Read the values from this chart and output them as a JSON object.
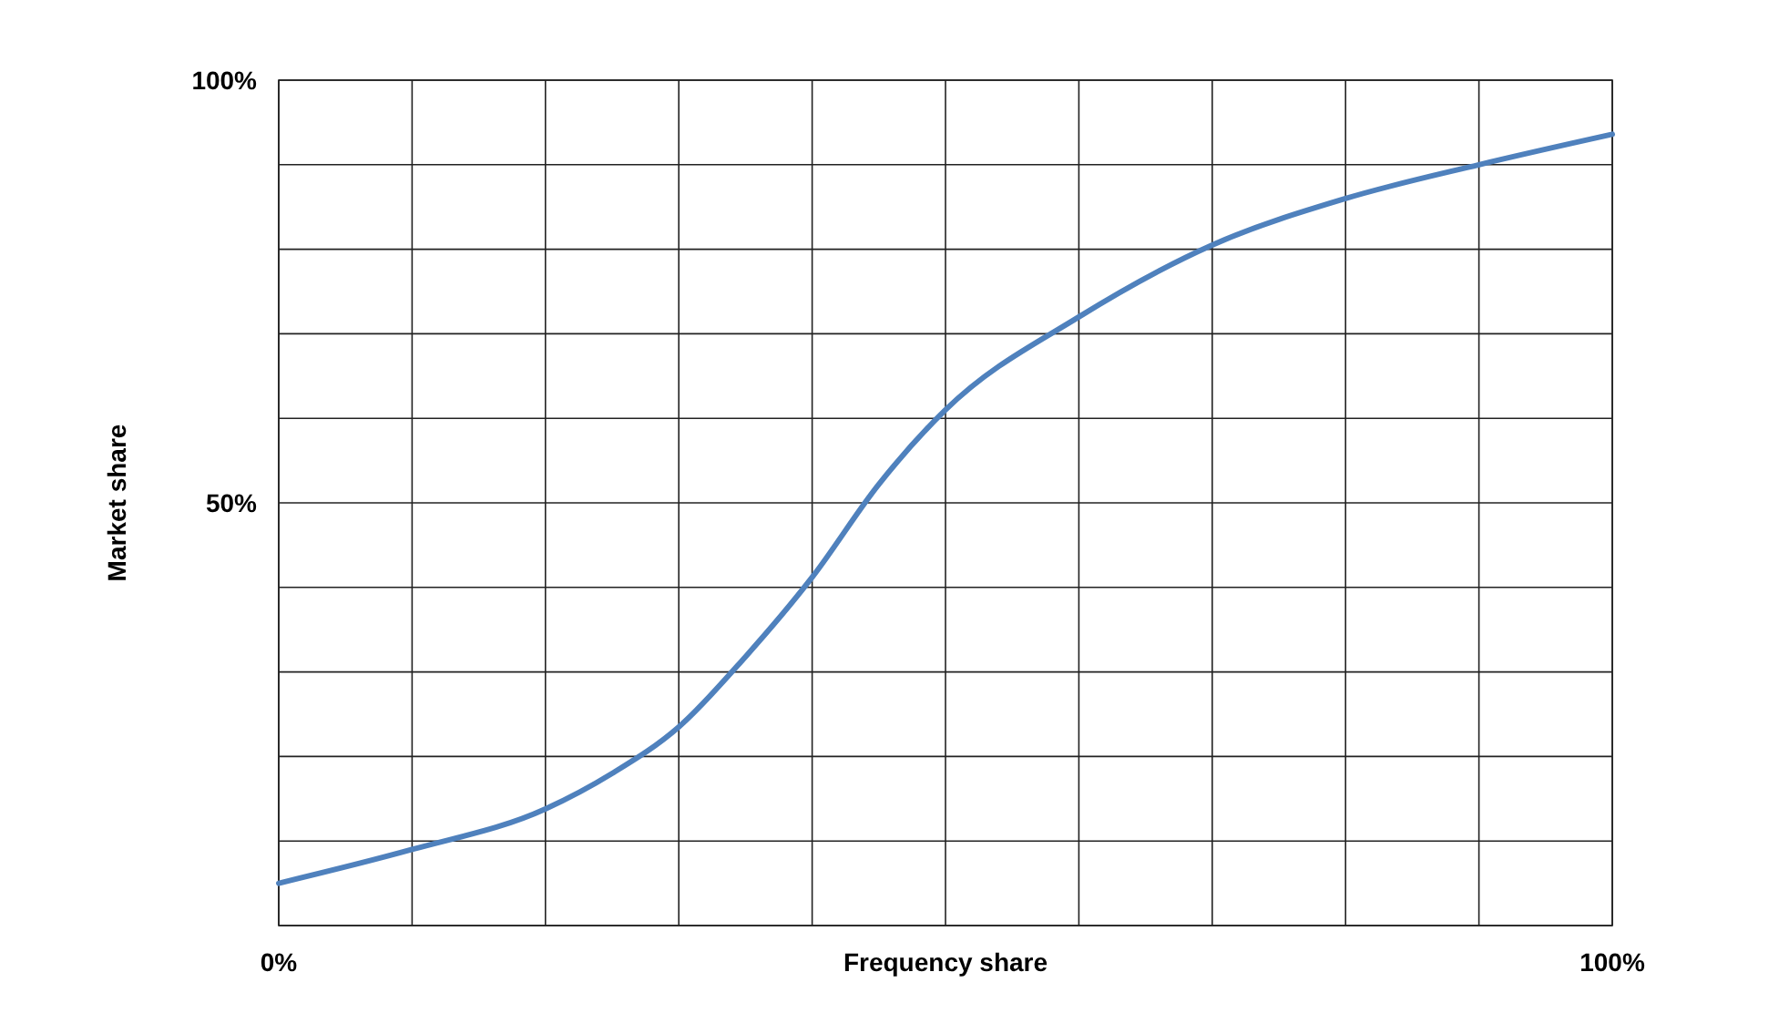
{
  "chart_data": {
    "type": "line",
    "xlabel": "Frequency share",
    "ylabel": "Market share",
    "x": [
      0,
      10,
      20,
      25,
      30,
      35,
      40,
      45,
      50,
      60,
      70,
      80,
      90,
      100
    ],
    "series": [
      {
        "color": "#4f81bd",
        "values": [
          5.0,
          9.0,
          13.8,
          18,
          23.5,
          31.8,
          41.2,
          52.2,
          61,
          72,
          80.5,
          86,
          90,
          93.6
        ]
      }
    ],
    "xlim": [
      0,
      100
    ],
    "ylim": [
      0,
      100
    ],
    "xticks": [
      {
        "value": 0,
        "label": "0%"
      },
      {
        "value": 10,
        "label": null
      },
      {
        "value": 20,
        "label": null
      },
      {
        "value": 30,
        "label": null
      },
      {
        "value": 40,
        "label": null
      },
      {
        "value": 50,
        "label": null
      },
      {
        "value": 60,
        "label": null
      },
      {
        "value": 70,
        "label": null
      },
      {
        "value": 80,
        "label": null
      },
      {
        "value": 90,
        "label": null
      },
      {
        "value": 100,
        "label": "100%"
      }
    ],
    "yticks": [
      {
        "value": 0,
        "label": null
      },
      {
        "value": 10,
        "label": null
      },
      {
        "value": 20,
        "label": null
      },
      {
        "value": 30,
        "label": null
      },
      {
        "value": 40,
        "label": null
      },
      {
        "value": 50,
        "label": "50%"
      },
      {
        "value": 60,
        "label": null
      },
      {
        "value": 70,
        "label": null
      },
      {
        "value": 80,
        "label": null
      },
      {
        "value": 90,
        "label": null
      },
      {
        "value": 100,
        "label": "100%"
      }
    ],
    "grid": true,
    "marker": "none",
    "line_style": "solid"
  }
}
